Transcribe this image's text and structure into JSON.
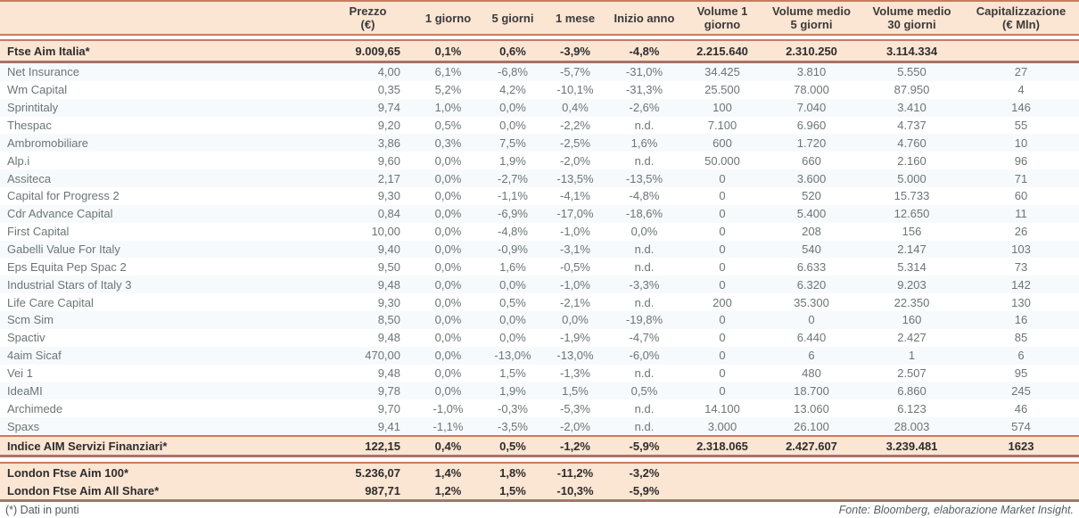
{
  "colors": {
    "header_bg": "#fbe5d3",
    "highlight_row_bg": "#fbe5d3",
    "line_salmon": "#cb7a60",
    "line_dark": "#a7746a",
    "body_text": "#6b7575",
    "bold_text": "#2d2d2d"
  },
  "table": {
    "headers": [
      [
        ""
      ],
      [
        "Prezzo",
        "(€)"
      ],
      [
        "1 giorno"
      ],
      [
        "5 giorni"
      ],
      [
        "1 mese"
      ],
      [
        "Inizio anno"
      ],
      [
        "Volume 1",
        "giorno"
      ],
      [
        "Volume medio",
        "5 giorni"
      ],
      [
        "Volume medio",
        "30 giorni"
      ],
      [
        "Capitalizzazione",
        "(€ Mln)"
      ]
    ],
    "index_row": {
      "name": "Ftse Aim Italia*",
      "values": [
        "9.009,65",
        "0,1%",
        "0,6%",
        "-3,9%",
        "-4,8%",
        "2.215.640",
        "2.310.250",
        "3.114.334",
        ""
      ]
    },
    "rows": [
      {
        "name": "Net Insurance",
        "values": [
          "4,00",
          "6,1%",
          "-6,8%",
          "-5,7%",
          "-31,0%",
          "34.425",
          "3.810",
          "5.550",
          "27"
        ]
      },
      {
        "name": "Wm Capital",
        "values": [
          "0,35",
          "5,2%",
          "4,2%",
          "-10,1%",
          "-31,3%",
          "25.500",
          "78.000",
          "87.950",
          "4"
        ]
      },
      {
        "name": "Sprintitaly",
        "values": [
          "9,74",
          "1,0%",
          "0,0%",
          "0,4%",
          "-2,6%",
          "100",
          "7.040",
          "3.410",
          "146"
        ]
      },
      {
        "name": "Thespac",
        "values": [
          "9,20",
          "0,5%",
          "0,0%",
          "-2,2%",
          "n.d.",
          "7.100",
          "6.960",
          "4.737",
          "55"
        ]
      },
      {
        "name": "Ambromobiliare",
        "values": [
          "3,86",
          "0,3%",
          "7,5%",
          "-2,5%",
          "1,6%",
          "600",
          "1.720",
          "4.760",
          "10"
        ]
      },
      {
        "name": "Alp.i",
        "values": [
          "9,60",
          "0,0%",
          "1,9%",
          "-2,0%",
          "n.d.",
          "50.000",
          "660",
          "2.160",
          "96"
        ]
      },
      {
        "name": "Assiteca",
        "values": [
          "2,17",
          "0,0%",
          "-2,7%",
          "-13,5%",
          "-13,5%",
          "0",
          "3.600",
          "5.000",
          "71"
        ]
      },
      {
        "name": "Capital for Progress 2",
        "values": [
          "9,30",
          "0,0%",
          "-1,1%",
          "-4,1%",
          "-4,8%",
          "0",
          "520",
          "15.733",
          "60"
        ]
      },
      {
        "name": "Cdr Advance Capital",
        "values": [
          "0,84",
          "0,0%",
          "-6,9%",
          "-17,0%",
          "-18,6%",
          "0",
          "5.400",
          "12.650",
          "11"
        ]
      },
      {
        "name": "First Capital",
        "values": [
          "10,00",
          "0,0%",
          "-4,8%",
          "-1,0%",
          "0,0%",
          "0",
          "208",
          "156",
          "26"
        ]
      },
      {
        "name": "Gabelli Value For Italy",
        "values": [
          "9,40",
          "0,0%",
          "-0,9%",
          "-3,1%",
          "n.d.",
          "0",
          "540",
          "2.147",
          "103"
        ]
      },
      {
        "name": "Eps Equita Pep Spac 2",
        "values": [
          "9,50",
          "0,0%",
          "1,6%",
          "-0,5%",
          "n.d.",
          "0",
          "6.633",
          "5.314",
          "73"
        ]
      },
      {
        "name": "Industrial Stars of Italy 3",
        "values": [
          "9,48",
          "0,0%",
          "0,0%",
          "-1,0%",
          "-3,3%",
          "0",
          "6.320",
          "9.203",
          "142"
        ]
      },
      {
        "name": "Life Care Capital",
        "values": [
          "9,30",
          "0,0%",
          "0,5%",
          "-2,1%",
          "n.d.",
          "200",
          "35.300",
          "22.350",
          "130"
        ]
      },
      {
        "name": "Scm Sim",
        "values": [
          "8,50",
          "0,0%",
          "0,0%",
          "0,0%",
          "-19,8%",
          "0",
          "0",
          "160",
          "16"
        ]
      },
      {
        "name": "Spactiv",
        "values": [
          "9,48",
          "0,0%",
          "0,0%",
          "-1,9%",
          "-4,7%",
          "0",
          "6.440",
          "2.427",
          "85"
        ]
      },
      {
        "name": "4aim Sicaf",
        "values": [
          "470,00",
          "0,0%",
          "-13,0%",
          "-13,0%",
          "-6,0%",
          "0",
          "6",
          "1",
          "6"
        ]
      },
      {
        "name": "Vei 1",
        "values": [
          "9,48",
          "0,0%",
          "1,5%",
          "-1,3%",
          "n.d.",
          "0",
          "480",
          "2.507",
          "95"
        ]
      },
      {
        "name": "IdeaMI",
        "values": [
          "9,78",
          "0,0%",
          "1,9%",
          "1,5%",
          "0,5%",
          "0",
          "18.700",
          "6.860",
          "245"
        ]
      },
      {
        "name": "Archimede",
        "values": [
          "9,70",
          "-1,0%",
          "-0,3%",
          "-5,3%",
          "n.d.",
          "14.100",
          "13.060",
          "6.123",
          "46"
        ]
      },
      {
        "name": "Spaxs",
        "values": [
          "9,41",
          "-1,1%",
          "-3,5%",
          "-2,0%",
          "n.d.",
          "3.000",
          "26.100",
          "28.003",
          "574"
        ]
      }
    ],
    "summary_row": {
      "name": "Indice AIM Servizi Finanziari*",
      "values": [
        "122,15",
        "0,4%",
        "0,5%",
        "-1,2%",
        "-5,9%",
        "2.318.065",
        "2.427.607",
        "3.239.481",
        "1623"
      ]
    },
    "london_rows": [
      {
        "name": "London Ftse Aim 100*",
        "values": [
          "5.236,07",
          "1,4%",
          "1,8%",
          "-11,2%",
          "-3,2%",
          "",
          "",
          "",
          ""
        ]
      },
      {
        "name": "London Ftse Aim All Share*",
        "values": [
          "987,71",
          "1,2%",
          "1,5%",
          "-10,3%",
          "-5,9%",
          "",
          "",
          "",
          ""
        ]
      }
    ]
  },
  "footer": {
    "note": "(*) Dati in punti",
    "source": "Fonte: Bloomberg, elaborazione Market Insight."
  }
}
